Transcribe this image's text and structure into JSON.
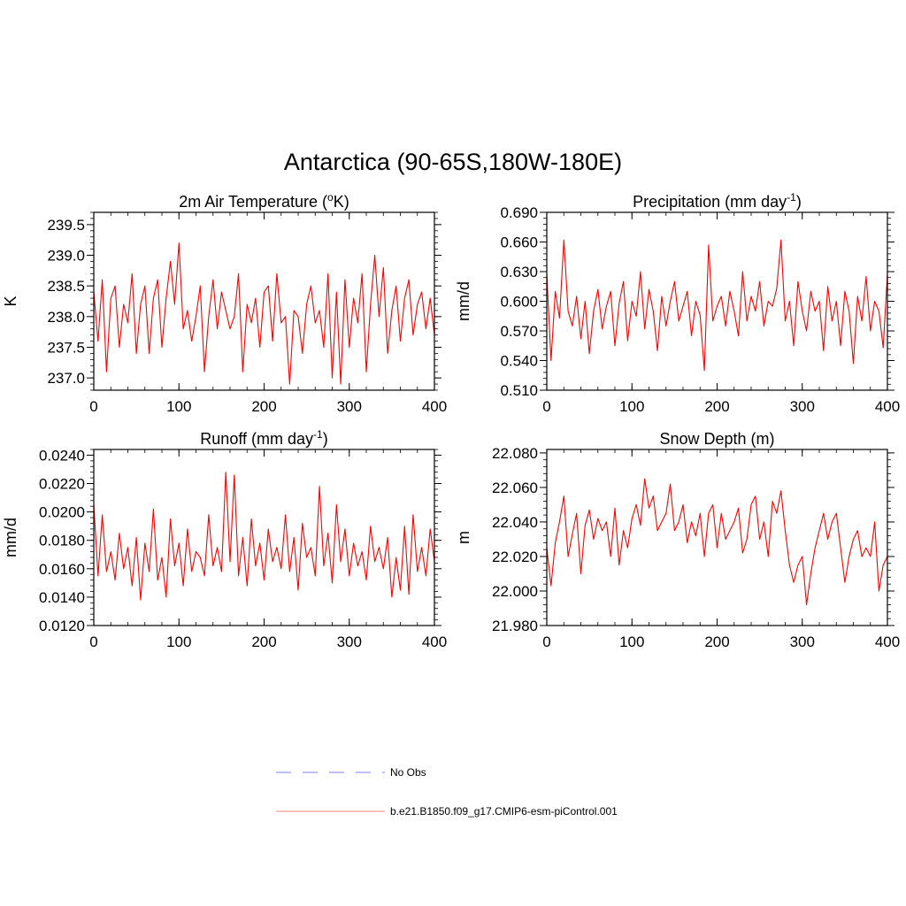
{
  "title": "Antarctica (90-65S,180W-180E)",
  "colors": {
    "model": "#ff0000",
    "obs": "#9999ff",
    "legend_model": "#ff9999"
  },
  "legend": {
    "obs_label": "No Obs",
    "model_label": "b.e21.B1850.f09_g17.CMIP6-esm-piControl.001"
  },
  "chart_data": [
    {
      "id": "temp",
      "type": "line",
      "title_main": "2m Air Temperature (",
      "title_sup": "o",
      "title_tail": "K)",
      "ylabel": "K",
      "xlim": [
        0,
        400
      ],
      "ylim": [
        236.8,
        239.7
      ],
      "xticks": [
        "0",
        "100",
        "200",
        "300",
        "400"
      ],
      "yticks": [
        "237.0",
        "237.5",
        "238.0",
        "238.5",
        "239.0",
        "239.5"
      ],
      "ytick_values": [
        237.0,
        237.5,
        238.0,
        238.5,
        239.0,
        239.5
      ],
      "series": [
        {
          "name": "b.e21.B1850.f09_g17.CMIP6-esm-piControl.001",
          "x_start": 0,
          "x_step": 5,
          "values": [
            238.4,
            237.6,
            238.6,
            237.1,
            238.3,
            238.5,
            237.5,
            238.2,
            237.9,
            238.7,
            237.4,
            238.2,
            238.5,
            237.4,
            238.3,
            238.6,
            237.5,
            238.3,
            238.9,
            238.2,
            239.2,
            237.8,
            238.1,
            237.6,
            238.0,
            238.5,
            237.1,
            238.0,
            238.6,
            237.8,
            238.4,
            238.1,
            237.8,
            238.0,
            238.7,
            237.1,
            238.2,
            237.9,
            238.3,
            237.5,
            238.4,
            238.5,
            237.6,
            238.7,
            237.9,
            238.0,
            236.9,
            238.1,
            238.0,
            237.4,
            238.2,
            238.5,
            237.9,
            238.1,
            237.5,
            238.7,
            237.0,
            238.4,
            236.9,
            238.6,
            237.5,
            238.3,
            237.9,
            238.7,
            237.1,
            238.2,
            239.0,
            238.0,
            238.8,
            237.4,
            238.1,
            238.5,
            237.6,
            238.3,
            238.6,
            237.7,
            238.2,
            238.4,
            237.8,
            238.3,
            237.7
          ]
        }
      ]
    },
    {
      "id": "precip",
      "type": "line",
      "title_main": "Precipitation (mm day",
      "title_sup": "-1",
      "title_tail": ")",
      "ylabel": "mm/d",
      "xlim": [
        0,
        400
      ],
      "ylim": [
        0.51,
        0.69
      ],
      "xticks": [
        "0",
        "100",
        "200",
        "300",
        "400"
      ],
      "yticks": [
        "0.510",
        "0.540",
        "0.570",
        "0.600",
        "0.630",
        "0.660",
        "0.690"
      ],
      "ytick_values": [
        0.51,
        0.54,
        0.57,
        0.6,
        0.63,
        0.66,
        0.69
      ],
      "series": [
        {
          "name": "b.e21.B1850.f09_g17.CMIP6-esm-piControl.001",
          "x_start": 0,
          "x_step": 5,
          "values": [
            0.628,
            0.54,
            0.61,
            0.583,
            0.662,
            0.59,
            0.575,
            0.605,
            0.562,
            0.6,
            0.547,
            0.59,
            0.612,
            0.572,
            0.595,
            0.61,
            0.555,
            0.598,
            0.62,
            0.56,
            0.6,
            0.585,
            0.63,
            0.572,
            0.612,
            0.59,
            0.55,
            0.605,
            0.575,
            0.6,
            0.62,
            0.58,
            0.595,
            0.61,
            0.565,
            0.6,
            0.586,
            0.53,
            0.657,
            0.58,
            0.595,
            0.605,
            0.575,
            0.61,
            0.59,
            0.565,
            0.63,
            0.58,
            0.605,
            0.59,
            0.62,
            0.575,
            0.6,
            0.595,
            0.613,
            0.662,
            0.58,
            0.6,
            0.555,
            0.62,
            0.59,
            0.57,
            0.61,
            0.59,
            0.6,
            0.55,
            0.615,
            0.58,
            0.6,
            0.555,
            0.61,
            0.59,
            0.537,
            0.605,
            0.58,
            0.625,
            0.57,
            0.6,
            0.59,
            0.553,
            0.628
          ]
        }
      ]
    },
    {
      "id": "runoff",
      "type": "line",
      "title_main": "Runoff (mm day",
      "title_sup": "-1",
      "title_tail": ")",
      "ylabel": "mm/d",
      "xlim": [
        0,
        400
      ],
      "ylim": [
        0.012,
        0.0244
      ],
      "xticks": [
        "0",
        "100",
        "200",
        "300",
        "400"
      ],
      "yticks": [
        "0.0120",
        "0.0140",
        "0.0160",
        "0.0180",
        "0.0200",
        "0.0220",
        "0.0240"
      ],
      "ytick_values": [
        0.012,
        0.014,
        0.016,
        0.018,
        0.02,
        0.022,
        0.024
      ],
      "series": [
        {
          "name": "b.e21.B1850.f09_g17.CMIP6-esm-piControl.001",
          "x_start": 0,
          "x_step": 5,
          "values": [
            0.0205,
            0.0155,
            0.0198,
            0.0158,
            0.0172,
            0.0152,
            0.0185,
            0.016,
            0.0175,
            0.0148,
            0.0182,
            0.0138,
            0.0178,
            0.0158,
            0.0202,
            0.0152,
            0.0168,
            0.014,
            0.0195,
            0.0162,
            0.0178,
            0.0148,
            0.0188,
            0.0158,
            0.0172,
            0.0168,
            0.0155,
            0.0198,
            0.0162,
            0.0175,
            0.0158,
            0.0228,
            0.0165,
            0.0226,
            0.0155,
            0.0182,
            0.0148,
            0.0195,
            0.0162,
            0.0178,
            0.0152,
            0.0188,
            0.0165,
            0.0175,
            0.016,
            0.0198,
            0.0158,
            0.0182,
            0.0145,
            0.0192,
            0.0168,
            0.0175,
            0.0155,
            0.0218,
            0.0162,
            0.0185,
            0.015,
            0.0205,
            0.0165,
            0.0188,
            0.0155,
            0.0178,
            0.0162,
            0.0172,
            0.0152,
            0.019,
            0.0165,
            0.0175,
            0.016,
            0.0182,
            0.014,
            0.0168,
            0.0145,
            0.019,
            0.0142,
            0.0198,
            0.0158,
            0.0175,
            0.0155,
            0.0188,
            0.0165
          ]
        }
      ]
    },
    {
      "id": "snow",
      "type": "line",
      "title_main": "Snow Depth (m)",
      "title_sup": "",
      "title_tail": "",
      "ylabel": "m",
      "xlim": [
        0,
        400
      ],
      "ylim": [
        21.98,
        22.082
      ],
      "xticks": [
        "0",
        "100",
        "200",
        "300",
        "400"
      ],
      "yticks": [
        "21.980",
        "22.000",
        "22.020",
        "22.040",
        "22.060",
        "22.080"
      ],
      "ytick_values": [
        21.98,
        22.0,
        22.02,
        22.04,
        22.06,
        22.08
      ],
      "series": [
        {
          "name": "b.e21.B1850.f09_g17.CMIP6-esm-piControl.001",
          "x_start": 0,
          "x_step": 5,
          "values": [
            22.025,
            22.003,
            22.028,
            22.04,
            22.055,
            22.02,
            22.033,
            22.045,
            22.01,
            22.038,
            22.047,
            22.03,
            22.042,
            22.035,
            22.04,
            22.02,
            22.048,
            22.015,
            22.035,
            22.025,
            22.042,
            22.05,
            22.038,
            22.065,
            22.048,
            22.055,
            22.035,
            22.04,
            22.045,
            22.062,
            22.035,
            22.04,
            22.05,
            22.028,
            22.04,
            22.032,
            22.045,
            22.02,
            22.045,
            22.05,
            22.025,
            22.045,
            22.03,
            22.035,
            22.04,
            22.048,
            22.022,
            22.03,
            22.05,
            22.055,
            22.03,
            22.04,
            22.02,
            22.052,
            22.045,
            22.058,
            22.035,
            22.015,
            22.005,
            22.015,
            22.02,
            21.992,
            22.01,
            22.025,
            22.035,
            22.045,
            22.03,
            22.04,
            22.045,
            22.025,
            22.005,
            22.02,
            22.03,
            22.035,
            22.02,
            22.025,
            22.02,
            22.04,
            22.0,
            22.015,
            22.02
          ]
        }
      ]
    }
  ]
}
